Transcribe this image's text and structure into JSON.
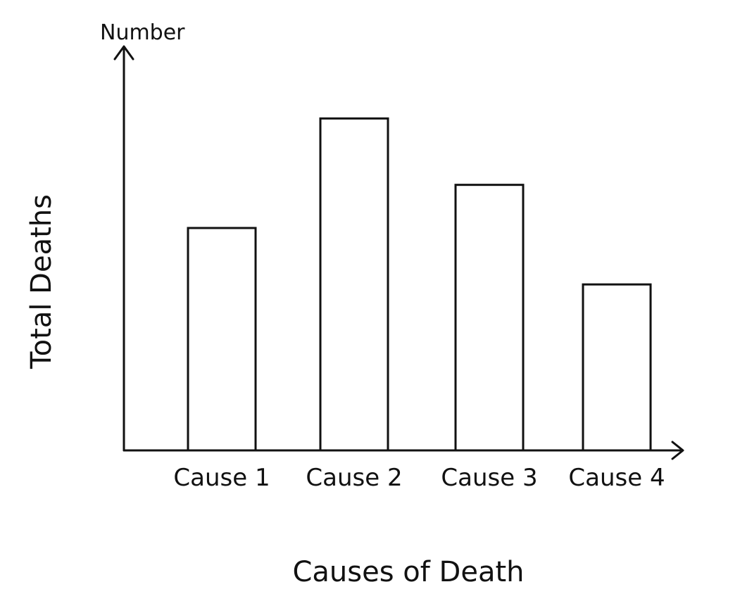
{
  "chart_data": {
    "type": "bar",
    "title": "",
    "xlabel": "Causes of Death",
    "ylabel": "Total Deaths",
    "y_axis_note": "Number",
    "categories": [
      "Cause 1",
      "Cause 2",
      "Cause 3",
      "Cause 4"
    ],
    "values": [
      67,
      100,
      80,
      50
    ],
    "ylim": [
      0,
      120
    ],
    "grid": false,
    "colors": {
      "stroke": "#111111",
      "fill": "#ffffff",
      "background": "#ffffff"
    }
  }
}
